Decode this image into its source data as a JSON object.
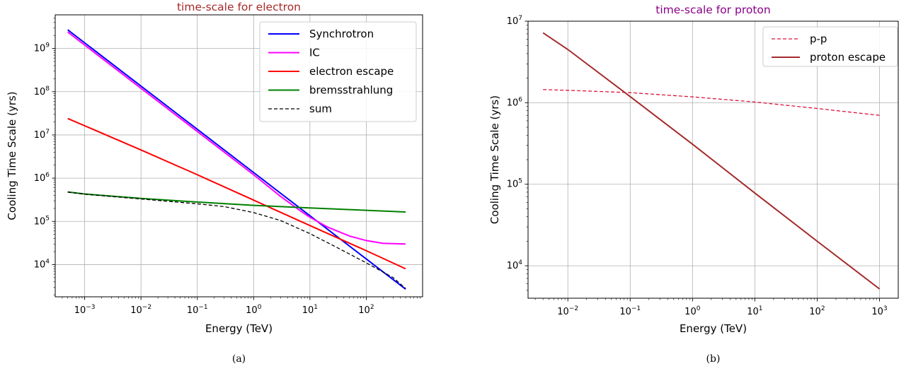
{
  "chart_data": [
    {
      "type": "line",
      "title": "time-scale for electron",
      "title_color": "#a52a2a",
      "xlabel": "Energy (TeV)",
      "ylabel": "Cooling Time Scale (yrs)",
      "xscale": "log",
      "yscale": "log",
      "xlim": [
        0.0003,
        1000
      ],
      "ylim": [
        1800,
        6000000000
      ],
      "xticks": [
        0.001,
        0.01,
        0.1,
        1,
        10,
        100
      ],
      "xtick_labels": [
        {
          "base": "10",
          "exp": "−3"
        },
        {
          "base": "10",
          "exp": "−2"
        },
        {
          "base": "10",
          "exp": "−1"
        },
        {
          "base": "10",
          "exp": "0"
        },
        {
          "base": "10",
          "exp": "1"
        },
        {
          "base": "10",
          "exp": "2"
        }
      ],
      "yticks": [
        10000,
        100000,
        1000000,
        10000000,
        100000000,
        1000000000
      ],
      "ytick_labels": [
        {
          "base": "10",
          "exp": "4"
        },
        {
          "base": "10",
          "exp": "5"
        },
        {
          "base": "10",
          "exp": "6"
        },
        {
          "base": "10",
          "exp": "7"
        },
        {
          "base": "10",
          "exp": "8"
        },
        {
          "base": "10",
          "exp": "9"
        }
      ],
      "grid": true,
      "legend_position": "top-right",
      "caption": "(a)",
      "series": [
        {
          "name": "Synchrotron",
          "color": "#0000ff",
          "style": "solid",
          "x": [
            0.0005,
            0.001,
            0.01,
            0.1,
            1,
            10,
            100,
            500
          ],
          "y": [
            2700000000,
            1350000000,
            135000000,
            13500000,
            1350000,
            135000,
            13500,
            2700
          ]
        },
        {
          "name": "IC",
          "color": "#ff00ff",
          "style": "solid",
          "x": [
            0.0005,
            0.001,
            0.01,
            0.1,
            1,
            3,
            7,
            10,
            20,
            50,
            100,
            200,
            500
          ],
          "y": [
            2400000000,
            1200000000,
            120000000,
            12000000,
            1200000,
            380000,
            170000,
            125000,
            75000,
            46000,
            36000,
            31000,
            30000
          ]
        },
        {
          "name": "electron escape",
          "color": "#ff0000",
          "style": "solid",
          "x": [
            0.0005,
            0.01,
            0.1,
            1,
            10,
            100,
            500
          ],
          "y": [
            24000000,
            4500000,
            1200000,
            310000,
            80000,
            21000,
            8000
          ]
        },
        {
          "name": "bremsstrahlung",
          "color": "#008000",
          "style": "solid",
          "x": [
            0.0005,
            0.001,
            0.01,
            0.1,
            1,
            10,
            100,
            500
          ],
          "y": [
            480000,
            430000,
            340000,
            280000,
            235000,
            205000,
            180000,
            165000
          ]
        },
        {
          "name": "sum",
          "color": "#000000",
          "style": "dashed",
          "x": [
            0.0005,
            0.001,
            0.01,
            0.1,
            0.3,
            1,
            3,
            10,
            30,
            100,
            300,
            500
          ],
          "y": [
            475000,
            425000,
            330000,
            255000,
            220000,
            160000,
            105000,
            52000,
            25000,
            11000,
            5000,
            2800
          ]
        }
      ]
    },
    {
      "type": "line",
      "title": "time-scale for proton",
      "title_color": "#8b008b",
      "xlabel": "Energy (TeV)",
      "ylabel": "Cooling Time Scale (yrs)",
      "xscale": "log",
      "yscale": "log",
      "xlim": [
        0.0023,
        2000
      ],
      "ylim": [
        4000,
        10000000
      ],
      "xticks": [
        0.01,
        0.1,
        1,
        10,
        100,
        1000
      ],
      "xtick_labels": [
        {
          "base": "10",
          "exp": "−2"
        },
        {
          "base": "10",
          "exp": "−1"
        },
        {
          "base": "10",
          "exp": "0"
        },
        {
          "base": "10",
          "exp": "1"
        },
        {
          "base": "10",
          "exp": "2"
        },
        {
          "base": "10",
          "exp": "3"
        }
      ],
      "yticks": [
        10000,
        100000,
        1000000,
        10000000
      ],
      "ytick_labels": [
        {
          "base": "10",
          "exp": "4"
        },
        {
          "base": "10",
          "exp": "5"
        },
        {
          "base": "10",
          "exp": "6"
        },
        {
          "base": "10",
          "exp": "7"
        }
      ],
      "grid": true,
      "legend_position": "top-right",
      "caption": "(b)",
      "series": [
        {
          "name": "p-p",
          "color": "#dc143c",
          "style": "dashed",
          "x": [
            0.004,
            0.01,
            0.1,
            1,
            10,
            100,
            1000
          ],
          "y": [
            1450000,
            1420000,
            1330000,
            1180000,
            1020000,
            850000,
            700000
          ]
        },
        {
          "name": "proton escape",
          "color": "#a52a2a",
          "style": "solid",
          "x": [
            0.004,
            0.01,
            0.1,
            1,
            10,
            100,
            1000
          ],
          "y": [
            7200000,
            4500000,
            1190000,
            310000,
            78000,
            20000,
            5200
          ]
        }
      ]
    }
  ]
}
